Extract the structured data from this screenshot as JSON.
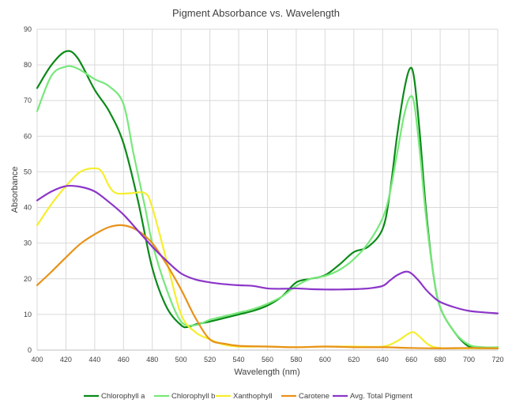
{
  "chart_data": {
    "type": "line",
    "title": "Pigment Absorbance vs. Wavelength",
    "xlabel": "Wavelength (nm)",
    "ylabel": "Absorbance",
    "xlim": [
      400,
      720
    ],
    "ylim": [
      0,
      90
    ],
    "x_ticks": [
      "400",
      "420",
      "440",
      "460",
      "480",
      "500",
      "520",
      "540",
      "560",
      "580",
      "600",
      "620",
      "640",
      "660",
      "680",
      "700",
      "720"
    ],
    "y_ticks": [
      "0",
      "10",
      "20",
      "30",
      "40",
      "50",
      "60",
      "70",
      "80",
      "90"
    ],
    "grid": true,
    "legend_position": "bottom",
    "series": [
      {
        "name": "Chlorophyll a",
        "color": "#0b8a18",
        "points": [
          [
            400,
            73.5
          ],
          [
            410,
            80
          ],
          [
            420,
            83.8
          ],
          [
            428,
            82
          ],
          [
            440,
            73
          ],
          [
            450,
            67
          ],
          [
            460,
            58
          ],
          [
            470,
            42
          ],
          [
            480,
            23
          ],
          [
            490,
            12
          ],
          [
            500,
            7
          ],
          [
            505,
            6.5
          ],
          [
            510,
            7.2
          ],
          [
            520,
            8
          ],
          [
            530,
            9
          ],
          [
            540,
            10
          ],
          [
            550,
            11
          ],
          [
            560,
            12.5
          ],
          [
            570,
            15
          ],
          [
            580,
            19
          ],
          [
            590,
            20
          ],
          [
            600,
            21
          ],
          [
            610,
            24
          ],
          [
            620,
            27.5
          ],
          [
            630,
            29
          ],
          [
            640,
            34
          ],
          [
            645,
            44
          ],
          [
            650,
            60
          ],
          [
            655,
            73
          ],
          [
            659,
            79
          ],
          [
            662,
            76
          ],
          [
            666,
            60
          ],
          [
            670,
            40
          ],
          [
            675,
            22
          ],
          [
            680,
            12
          ],
          [
            690,
            5
          ],
          [
            700,
            1
          ],
          [
            710,
            0.5
          ],
          [
            720,
            0.5
          ]
        ]
      },
      {
        "name": "Chlorophyll b",
        "color": "#77e87a",
        "points": [
          [
            400,
            67
          ],
          [
            410,
            77
          ],
          [
            420,
            79.5
          ],
          [
            428,
            79
          ],
          [
            440,
            76
          ],
          [
            450,
            74
          ],
          [
            460,
            69
          ],
          [
            467,
            55
          ],
          [
            475,
            40
          ],
          [
            480,
            30
          ],
          [
            490,
            17
          ],
          [
            500,
            8
          ],
          [
            510,
            7
          ],
          [
            520,
            8.5
          ],
          [
            530,
            9.5
          ],
          [
            540,
            10.5
          ],
          [
            550,
            11.5
          ],
          [
            560,
            13
          ],
          [
            570,
            15
          ],
          [
            580,
            18
          ],
          [
            590,
            20
          ],
          [
            600,
            20.8
          ],
          [
            610,
            22.5
          ],
          [
            620,
            25.5
          ],
          [
            630,
            30
          ],
          [
            640,
            37
          ],
          [
            645,
            44
          ],
          [
            650,
            55
          ],
          [
            655,
            66
          ],
          [
            659,
            71
          ],
          [
            662,
            69
          ],
          [
            666,
            55
          ],
          [
            670,
            38
          ],
          [
            675,
            22
          ],
          [
            680,
            12
          ],
          [
            690,
            5
          ],
          [
            700,
            1.5
          ],
          [
            710,
            0.8
          ],
          [
            720,
            0.8
          ]
        ]
      },
      {
        "name": "Xanthophyll",
        "color": "#f6ee2d",
        "points": [
          [
            400,
            35
          ],
          [
            410,
            41
          ],
          [
            420,
            46
          ],
          [
            430,
            50
          ],
          [
            440,
            51
          ],
          [
            445,
            50
          ],
          [
            450,
            46
          ],
          [
            455,
            44
          ],
          [
            465,
            44
          ],
          [
            475,
            44
          ],
          [
            480,
            40
          ],
          [
            490,
            25
          ],
          [
            500,
            10
          ],
          [
            510,
            5
          ],
          [
            520,
            3
          ],
          [
            530,
            1.5
          ],
          [
            540,
            1
          ],
          [
            560,
            1
          ],
          [
            580,
            0.8
          ],
          [
            600,
            1
          ],
          [
            620,
            1
          ],
          [
            640,
            1
          ],
          [
            650,
            2.5
          ],
          [
            660,
            5
          ],
          [
            665,
            4
          ],
          [
            672,
            1.5
          ],
          [
            680,
            0.6
          ],
          [
            700,
            0.5
          ],
          [
            720,
            0.5
          ]
        ]
      },
      {
        "name": "Carotene",
        "color": "#e89219",
        "points": [
          [
            400,
            18.2
          ],
          [
            410,
            22
          ],
          [
            420,
            26
          ],
          [
            430,
            29.8
          ],
          [
            440,
            32.5
          ],
          [
            450,
            34.5
          ],
          [
            460,
            35
          ],
          [
            470,
            33.5
          ],
          [
            480,
            30
          ],
          [
            490,
            24
          ],
          [
            500,
            17
          ],
          [
            510,
            9
          ],
          [
            520,
            3
          ],
          [
            530,
            1.8
          ],
          [
            540,
            1.2
          ],
          [
            560,
            1
          ],
          [
            580,
            0.8
          ],
          [
            600,
            1
          ],
          [
            620,
            0.8
          ],
          [
            640,
            0.8
          ],
          [
            660,
            0.6
          ],
          [
            680,
            0.5
          ],
          [
            700,
            0.6
          ],
          [
            720,
            0.5
          ]
        ]
      },
      {
        "name": "Avg. Total Pigment",
        "color": "#8b35c9",
        "points": [
          [
            400,
            42
          ],
          [
            410,
            44.5
          ],
          [
            420,
            46
          ],
          [
            430,
            45.8
          ],
          [
            440,
            44.5
          ],
          [
            450,
            41.5
          ],
          [
            460,
            38
          ],
          [
            470,
            33.5
          ],
          [
            480,
            29
          ],
          [
            490,
            25
          ],
          [
            500,
            21.5
          ],
          [
            510,
            19.8
          ],
          [
            520,
            19
          ],
          [
            530,
            18.5
          ],
          [
            540,
            18.2
          ],
          [
            550,
            18
          ],
          [
            560,
            17.3
          ],
          [
            570,
            17.2
          ],
          [
            580,
            17.3
          ],
          [
            590,
            17.1
          ],
          [
            600,
            17
          ],
          [
            610,
            17
          ],
          [
            620,
            17.1
          ],
          [
            630,
            17.3
          ],
          [
            640,
            18
          ],
          [
            645,
            19.5
          ],
          [
            650,
            21
          ],
          [
            656,
            22
          ],
          [
            660,
            21.5
          ],
          [
            665,
            19.5
          ],
          [
            670,
            17
          ],
          [
            675,
            15
          ],
          [
            680,
            13.5
          ],
          [
            690,
            12
          ],
          [
            700,
            11
          ],
          [
            710,
            10.6
          ],
          [
            720,
            10.3
          ]
        ]
      }
    ]
  }
}
